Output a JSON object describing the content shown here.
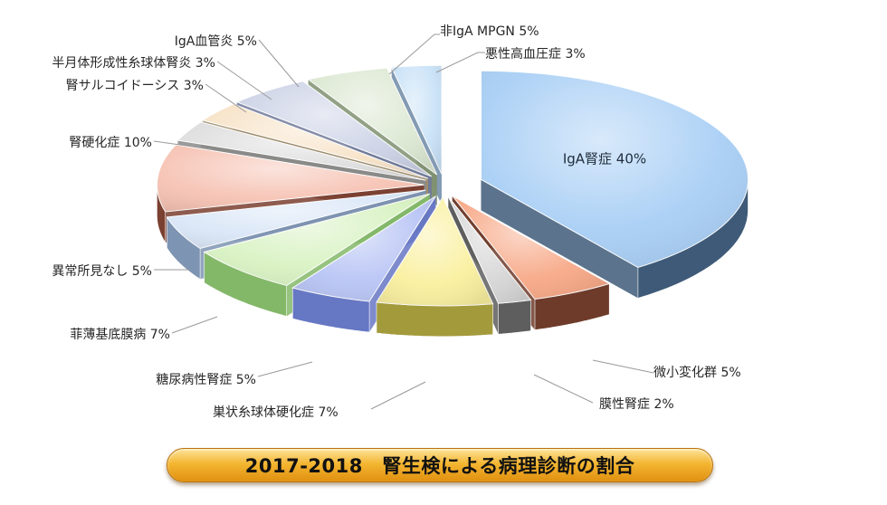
{
  "title": "2017-2018　腎生検による病理診断の割合",
  "chart_data": {
    "type": "pie",
    "title": "2017-2018　腎生検による病理診断の割合",
    "slices": [
      {
        "label": "IgA腎症",
        "value": 40,
        "display": "IgA腎症  40%",
        "color": "#a9cff5",
        "dark": "#3e5a78"
      },
      {
        "label": "微小変化群",
        "value": 5,
        "display": "微小変化群 5%",
        "color": "#f7a988",
        "dark": "#6e3b2a"
      },
      {
        "label": "膜性腎症",
        "value": 2,
        "display": "膜性腎症 2%",
        "color": "#d6d6d6",
        "dark": "#5e5e5e"
      },
      {
        "label": "巣状糸球体硬化症",
        "value": 7,
        "display": "巣状糸球体硬化症 7%",
        "color": "#faf0a0",
        "dark": "#a39a3c"
      },
      {
        "label": "糖尿病性腎症",
        "value": 5,
        "display": "糖尿病性腎症 5%",
        "color": "#b9c5f5",
        "dark": "#6677c4"
      },
      {
        "label": "菲薄基底膜病",
        "value": 7,
        "display": "菲薄基底膜病 7%",
        "color": "#d8f2c2",
        "dark": "#84b869"
      },
      {
        "label": "異常所見なし",
        "value": 5,
        "display": "異常所見なし 5%",
        "color": "#d9e6f7",
        "dark": "#7e94b3"
      },
      {
        "label": "腎硬化症",
        "value": 10,
        "display": "腎硬化症 10%",
        "color": "#f6c3b4",
        "dark": "#7a4030"
      },
      {
        "label": "腎サルコイドーシス",
        "value": 3,
        "display": "腎サルコイドーシス 3%",
        "color": "#dedede",
        "dark": "#8a8a8a"
      },
      {
        "label": "半月体形成性糸球体腎炎",
        "value": 3,
        "display": "半月体形成性糸球体腎炎 3%",
        "color": "#f7e3c8",
        "dark": "#a08d6c"
      },
      {
        "label": "IgA血管炎",
        "value": 5,
        "display": "IgA血管炎 5%",
        "color": "#ccd2e6",
        "dark": "#717a9a"
      },
      {
        "label": "非IgA MPGN",
        "value": 5,
        "display": "非IgA MPGN 5%",
        "color": "#dce8d2",
        "dark": "#7f9070"
      },
      {
        "label": "悪性高血圧症",
        "value": 3,
        "display": "悪性高血圧症 3%",
        "color": "#c9e2f7",
        "dark": "#6d89a6"
      }
    ],
    "start_angle_deg": -90,
    "direction": "clockwise",
    "exploded": true,
    "perspective": "3d-tilted",
    "legend": "none"
  }
}
